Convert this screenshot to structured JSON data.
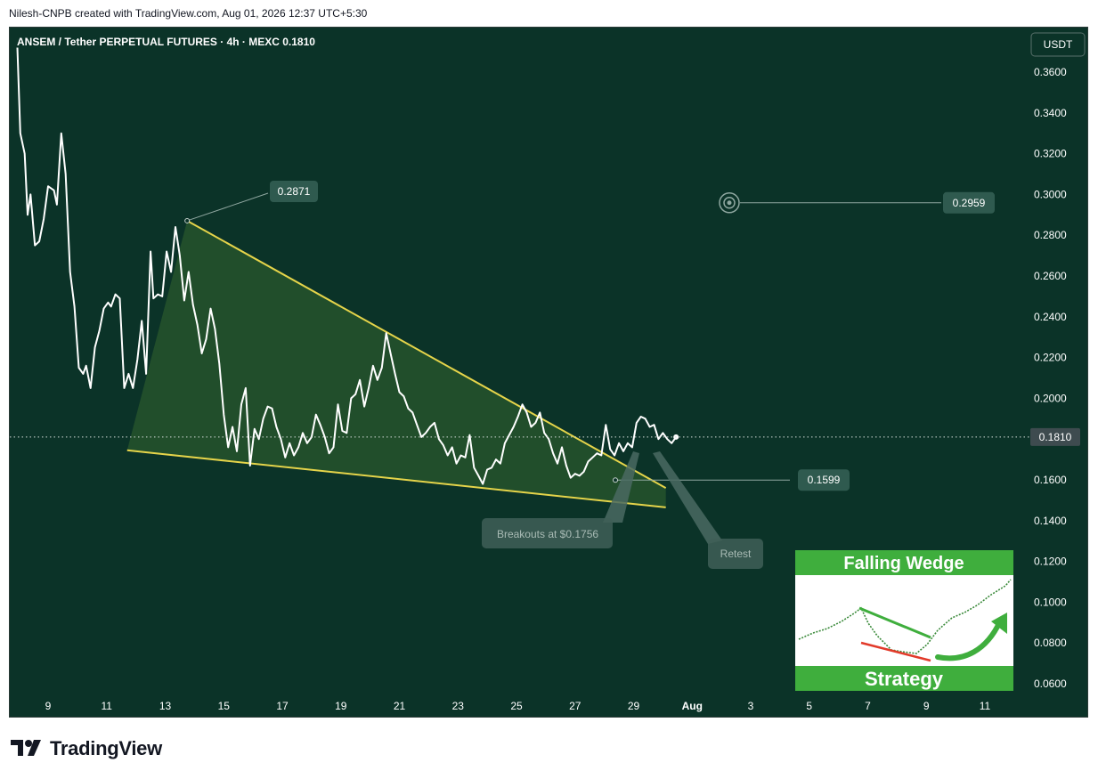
{
  "header": {
    "text": "Nilesh-CNPB created with TradingView.com, Aug 01, 2026 12:37 UTC+5:30"
  },
  "chart_title": "ANSEM / Tether PERPETUAL FUTURES · 4h · MEXC  0.1810",
  "currency": "USDT",
  "footer": {
    "brand": "TradingView"
  },
  "colors": {
    "background": "#0b3328",
    "line": "#ffffff",
    "wedge": "#e5d44a",
    "wedge_fill": "#2b5a2c",
    "label_bg": "#2f5a4f",
    "price_tag": "#3e4b4f"
  },
  "chart_data": {
    "type": "line",
    "title": "ANSEM / Tether PERPETUAL FUTURES · 4h · MEXC  0.1810",
    "xlabel": "",
    "ylabel": "",
    "ylim": [
      0.055,
      0.372
    ],
    "y_ticks": [
      "0.3600",
      "0.3400",
      "0.3200",
      "0.3000",
      "0.2800",
      "0.2600",
      "0.2400",
      "0.2200",
      "0.2000",
      "0.1800",
      "0.1600",
      "0.1400",
      "0.1200",
      "0.1000",
      "0.0800",
      "0.0600"
    ],
    "x_ticks": [
      "9",
      "11",
      "13",
      "15",
      "17",
      "19",
      "21",
      "23",
      "25",
      "27",
      "29",
      "Aug",
      "3",
      "5",
      "7",
      "9",
      "11"
    ],
    "last_price": "0.1810",
    "series": [
      {
        "values_by_day": [
          [
            7.95,
            0.372
          ],
          [
            8.05,
            0.33
          ],
          [
            8.2,
            0.32
          ],
          [
            8.3,
            0.29
          ],
          [
            8.4,
            0.3
          ],
          [
            8.55,
            0.275
          ],
          [
            8.7,
            0.277
          ],
          [
            8.85,
            0.288
          ],
          [
            9.0,
            0.304
          ],
          [
            9.2,
            0.302
          ],
          [
            9.3,
            0.295
          ],
          [
            9.45,
            0.33
          ],
          [
            9.6,
            0.31
          ],
          [
            9.75,
            0.262
          ],
          [
            9.9,
            0.245
          ],
          [
            10.05,
            0.215
          ],
          [
            10.2,
            0.212
          ],
          [
            10.3,
            0.216
          ],
          [
            10.45,
            0.205
          ],
          [
            10.6,
            0.225
          ],
          [
            10.75,
            0.233
          ],
          [
            10.9,
            0.244
          ],
          [
            11.05,
            0.247
          ],
          [
            11.15,
            0.245
          ],
          [
            11.3,
            0.251
          ],
          [
            11.45,
            0.249
          ],
          [
            11.6,
            0.205
          ],
          [
            11.75,
            0.212
          ],
          [
            11.9,
            0.205
          ],
          [
            12.05,
            0.219
          ],
          [
            12.2,
            0.238
          ],
          [
            12.35,
            0.212
          ],
          [
            12.5,
            0.272
          ],
          [
            12.6,
            0.249
          ],
          [
            12.75,
            0.251
          ],
          [
            12.9,
            0.25
          ],
          [
            13.05,
            0.272
          ],
          [
            13.2,
            0.262
          ],
          [
            13.35,
            0.284
          ],
          [
            13.5,
            0.27
          ],
          [
            13.65,
            0.248
          ],
          [
            13.8,
            0.262
          ],
          [
            13.95,
            0.246
          ],
          [
            14.1,
            0.236
          ],
          [
            14.25,
            0.222
          ],
          [
            14.4,
            0.229
          ],
          [
            14.55,
            0.244
          ],
          [
            14.7,
            0.234
          ],
          [
            14.85,
            0.217
          ],
          [
            15.0,
            0.192
          ],
          [
            15.15,
            0.176
          ],
          [
            15.3,
            0.186
          ],
          [
            15.45,
            0.174
          ],
          [
            15.6,
            0.197
          ],
          [
            15.75,
            0.205
          ],
          [
            15.9,
            0.167
          ],
          [
            16.05,
            0.185
          ],
          [
            16.2,
            0.18
          ],
          [
            16.35,
            0.19
          ],
          [
            16.5,
            0.196
          ],
          [
            16.65,
            0.195
          ],
          [
            16.8,
            0.186
          ],
          [
            16.95,
            0.18
          ],
          [
            17.1,
            0.171
          ],
          [
            17.25,
            0.178
          ],
          [
            17.4,
            0.172
          ],
          [
            17.55,
            0.176
          ],
          [
            17.7,
            0.183
          ],
          [
            17.85,
            0.178
          ],
          [
            18.0,
            0.181
          ],
          [
            18.15,
            0.192
          ],
          [
            18.3,
            0.187
          ],
          [
            18.45,
            0.181
          ],
          [
            18.6,
            0.173
          ],
          [
            18.75,
            0.176
          ],
          [
            18.9,
            0.197
          ],
          [
            19.05,
            0.184
          ],
          [
            19.2,
            0.183
          ],
          [
            19.35,
            0.2
          ],
          [
            19.5,
            0.202
          ],
          [
            19.65,
            0.209
          ],
          [
            19.8,
            0.196
          ],
          [
            19.95,
            0.205
          ],
          [
            20.1,
            0.216
          ],
          [
            20.25,
            0.209
          ],
          [
            20.4,
            0.215
          ],
          [
            20.55,
            0.232
          ],
          [
            20.7,
            0.222
          ],
          [
            20.85,
            0.212
          ],
          [
            21.0,
            0.203
          ],
          [
            21.15,
            0.201
          ],
          [
            21.3,
            0.195
          ],
          [
            21.45,
            0.193
          ],
          [
            21.6,
            0.187
          ],
          [
            21.75,
            0.181
          ],
          [
            21.9,
            0.183
          ],
          [
            22.05,
            0.186
          ],
          [
            22.2,
            0.188
          ],
          [
            22.35,
            0.18
          ],
          [
            22.5,
            0.177
          ],
          [
            22.65,
            0.172
          ],
          [
            22.8,
            0.176
          ],
          [
            22.95,
            0.168
          ],
          [
            23.1,
            0.172
          ],
          [
            23.25,
            0.171
          ],
          [
            23.4,
            0.182
          ],
          [
            23.55,
            0.166
          ],
          [
            23.7,
            0.162
          ],
          [
            23.85,
            0.158
          ],
          [
            24.0,
            0.165
          ],
          [
            24.15,
            0.166
          ],
          [
            24.3,
            0.17
          ],
          [
            24.45,
            0.168
          ],
          [
            24.6,
            0.178
          ],
          [
            24.75,
            0.182
          ],
          [
            24.9,
            0.186
          ],
          [
            25.05,
            0.191
          ],
          [
            25.2,
            0.197
          ],
          [
            25.35,
            0.193
          ],
          [
            25.5,
            0.186
          ],
          [
            25.65,
            0.188
          ],
          [
            25.8,
            0.193
          ],
          [
            25.95,
            0.183
          ],
          [
            26.1,
            0.18
          ],
          [
            26.25,
            0.173
          ],
          [
            26.4,
            0.168
          ],
          [
            26.55,
            0.176
          ],
          [
            26.7,
            0.167
          ],
          [
            26.85,
            0.161
          ],
          [
            27.0,
            0.163
          ],
          [
            27.15,
            0.162
          ],
          [
            27.3,
            0.164
          ],
          [
            27.45,
            0.169
          ],
          [
            27.6,
            0.171
          ],
          [
            27.75,
            0.173
          ],
          [
            27.9,
            0.172
          ],
          [
            28.05,
            0.187
          ],
          [
            28.2,
            0.175
          ],
          [
            28.35,
            0.172
          ],
          [
            28.5,
            0.178
          ],
          [
            28.65,
            0.174
          ],
          [
            28.8,
            0.178
          ],
          [
            28.95,
            0.176
          ],
          [
            29.1,
            0.188
          ],
          [
            29.25,
            0.191
          ],
          [
            29.4,
            0.19
          ],
          [
            29.55,
            0.186
          ],
          [
            29.7,
            0.187
          ],
          [
            29.85,
            0.18
          ],
          [
            30.0,
            0.183
          ],
          [
            30.15,
            0.18
          ],
          [
            30.3,
            0.178
          ],
          [
            30.45,
            0.181
          ]
        ]
      }
    ],
    "annotations": [
      {
        "text": "0.2871",
        "value": 0.2871
      },
      {
        "text": "0.2959",
        "value": 0.2959
      },
      {
        "text": "0.1599",
        "value": 0.1599
      },
      {
        "text": "Breakouts at $0.1756",
        "value": 0.1756
      },
      {
        "text": "Retest"
      }
    ],
    "grid": false,
    "legend": "none"
  },
  "inset": {
    "title": "Falling Wedge",
    "subtitle": "Strategy"
  }
}
